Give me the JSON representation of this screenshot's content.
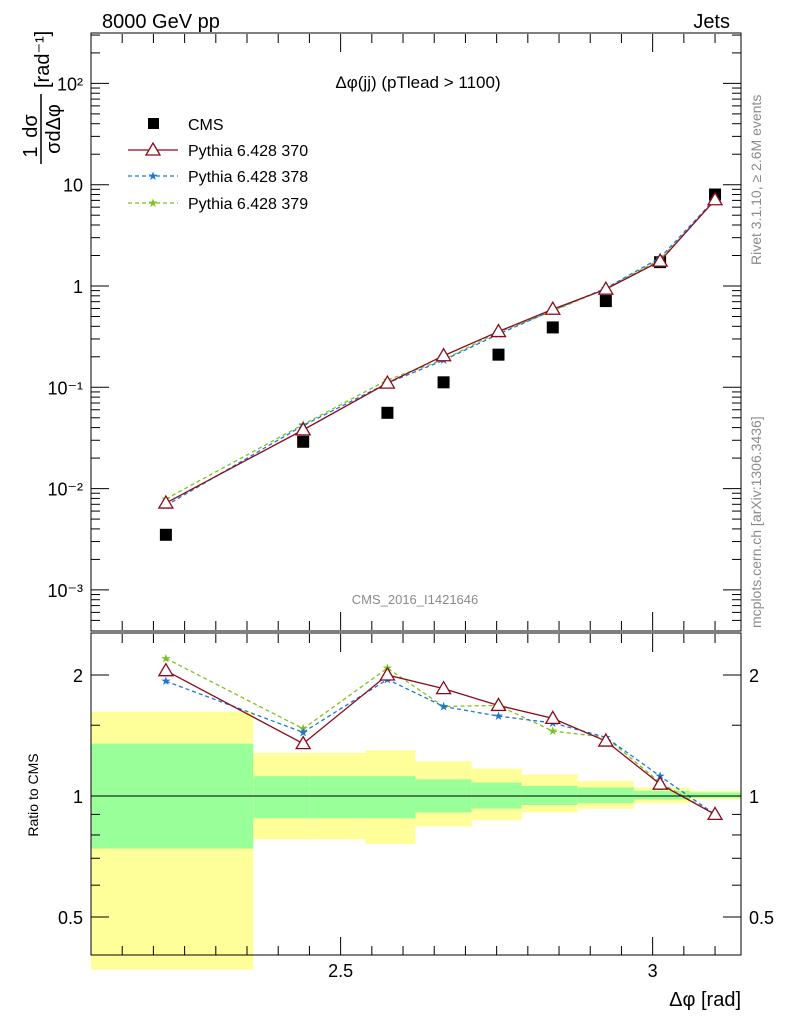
{
  "header": {
    "left": "8000 GeV pp",
    "right": "Jets"
  },
  "side": {
    "rivet": "Rivet 3.1.10, ≥ 2.6M events",
    "mcplots": "mcplots.cern.ch [arXiv:1306.3436]"
  },
  "colors": {
    "data": "#000000",
    "py370": "#8b0a1e",
    "py378": "#1f77d4",
    "py379": "#7ec21e",
    "band_inner": "#99ff99",
    "band_outer": "#ffff99"
  },
  "chart_data": [
    {
      "type": "scatter",
      "title": "Δφ(jj) (pTlead >  1100)",
      "watermark": "CMS_2016_I1421646",
      "xlabel": "Δφ [rad]",
      "ylabel": "1/σ dσ/dΔφ [rad⁻¹]",
      "yscale": "log",
      "xlim": [
        2.1,
        3.1416
      ],
      "ylim": [
        0.0004,
        300
      ],
      "ytick_labels": [
        "10⁻³",
        "10⁻²",
        "10⁻¹",
        "1",
        "10",
        "10²"
      ],
      "legend_position": "top-left",
      "x": [
        2.22,
        2.44,
        2.575,
        2.665,
        2.753,
        2.84,
        2.925,
        3.012,
        3.1
      ],
      "series": [
        {
          "name": "CMS",
          "marker": "square",
          "values": [
            0.0035,
            0.029,
            0.056,
            0.112,
            0.21,
            0.39,
            0.71,
            1.72,
            8.0
          ]
        },
        {
          "name": "Pythia 6.428 370",
          "marker": "open-triangle",
          "values": [
            0.0072,
            0.038,
            0.11,
            0.205,
            0.355,
            0.59,
            0.93,
            1.76,
            7.1
          ]
        },
        {
          "name": "Pythia 6.428 378",
          "marker": "star",
          "values": [
            0.0068,
            0.042,
            0.11,
            0.185,
            0.335,
            0.575,
            0.95,
            1.9,
            7.2
          ]
        },
        {
          "name": "Pythia 6.428 379",
          "marker": "star",
          "values": [
            0.0079,
            0.043,
            0.118,
            0.188,
            0.35,
            0.565,
            0.94,
            1.83,
            7.0
          ]
        }
      ]
    },
    {
      "type": "line",
      "ylabel": "Ratio to CMS",
      "yscale": "log",
      "ylim": [
        0.4,
        2.4
      ],
      "xlim": [
        2.1,
        3.1416
      ],
      "xtick_labels": [
        "2.5",
        "3"
      ],
      "ytick_labels": [
        "0.5",
        "1",
        "2"
      ],
      "x": [
        2.22,
        2.44,
        2.575,
        2.665,
        2.753,
        2.84,
        2.925,
        3.012,
        3.1
      ],
      "series": [
        {
          "name": "Pythia 6.428 370",
          "values": [
            2.05,
            1.35,
            2.0,
            1.85,
            1.68,
            1.56,
            1.37,
            1.07,
            0.9
          ]
        },
        {
          "name": "Pythia 6.428 378",
          "values": [
            1.93,
            1.44,
            1.95,
            1.67,
            1.58,
            1.52,
            1.4,
            1.12,
            0.9
          ]
        },
        {
          "name": "Pythia 6.428 379",
          "values": [
            2.2,
            1.47,
            2.08,
            1.67,
            1.68,
            1.45,
            1.4,
            1.08,
            0.9
          ]
        }
      ],
      "error_bands": {
        "bin_edges": [
          2.1,
          2.36,
          2.45,
          2.54,
          2.62,
          2.71,
          2.79,
          2.88,
          2.97,
          3.06,
          3.1416
        ],
        "inner_low": [
          0.74,
          0.88,
          0.88,
          0.88,
          0.91,
          0.93,
          0.95,
          0.96,
          0.98,
          0.99
        ],
        "inner_high": [
          1.35,
          1.12,
          1.12,
          1.12,
          1.1,
          1.08,
          1.06,
          1.05,
          1.03,
          1.02
        ],
        "outer_low": [
          0.37,
          0.78,
          0.78,
          0.76,
          0.84,
          0.87,
          0.91,
          0.93,
          0.96,
          0.98
        ],
        "outer_high": [
          1.62,
          1.28,
          1.28,
          1.3,
          1.22,
          1.17,
          1.13,
          1.09,
          1.05,
          1.03
        ]
      }
    }
  ]
}
